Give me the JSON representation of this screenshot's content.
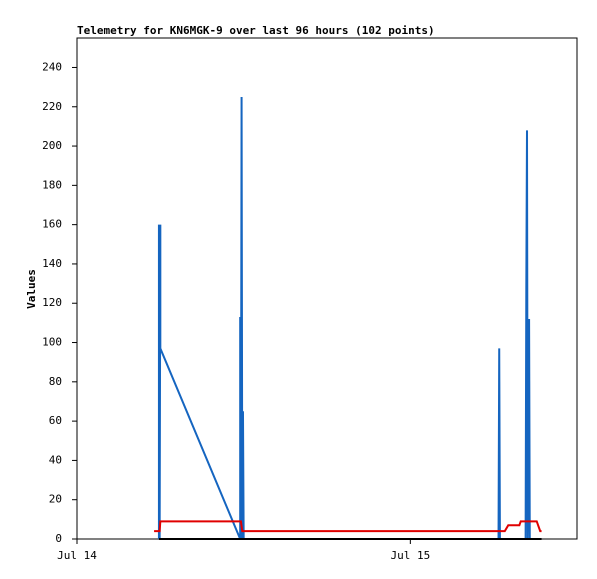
{
  "chart_data": {
    "type": "line",
    "title": "Telemetry for KN6MGK-9 over last 96 hours (102 points)",
    "y_label": "Values",
    "xlim": [
      0,
      36
    ],
    "xticks": [
      {
        "value": 0,
        "label": "Jul 14"
      },
      {
        "value": 24,
        "label": "Jul 15"
      }
    ],
    "ylim": [
      0,
      255
    ],
    "yticks": [
      0,
      20,
      40,
      60,
      80,
      100,
      120,
      140,
      160,
      180,
      200,
      220,
      240
    ],
    "series": [
      {
        "color": "#1565c0",
        "x": [
          5.9,
          5.9,
          5.95,
          6.0,
          6.0,
          11.75,
          11.75,
          11.8,
          11.85,
          11.9,
          11.95,
          12.0,
          30.35,
          30.4,
          30.45,
          32.3,
          32.35,
          32.4,
          32.45,
          32.55,
          32.6
        ],
        "values": [
          0,
          160,
          0,
          160,
          97,
          0,
          113,
          0,
          225,
          0,
          65,
          0,
          0,
          97,
          0,
          0,
          128,
          208,
          0,
          112,
          0
        ]
      },
      {
        "color": "#e00000",
        "x": [
          5.55,
          5.95,
          6.0,
          11.8,
          11.9,
          30.8,
          31.05,
          31.85,
          31.95,
          33.1,
          33.35,
          33.45
        ],
        "values": [
          4,
          4,
          9,
          9,
          4,
          4,
          7,
          7,
          9,
          9,
          4,
          4
        ]
      },
      {
        "color": "#000000",
        "x": [
          5.9,
          33.45
        ],
        "values": [
          0,
          0
        ]
      }
    ]
  }
}
